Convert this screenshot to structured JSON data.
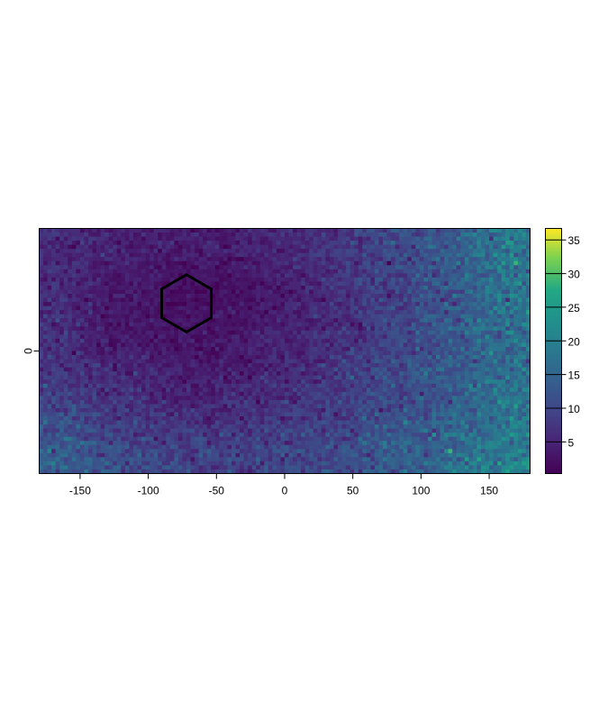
{
  "chart_data": {
    "type": "heatmap",
    "title": "",
    "xlabel": "",
    "ylabel": "",
    "xlim": [
      -180,
      180
    ],
    "ylim": [
      -90,
      90
    ],
    "x_ticks": [
      "-150",
      "-100",
      "-50",
      "0",
      "50",
      "100",
      "150"
    ],
    "y_ticks": [
      "0"
    ],
    "cell_size": 3,
    "colormap": "viridis",
    "zlim": [
      0.3,
      36.7
    ],
    "legend_ticks": [
      "5",
      "10",
      "15",
      "20",
      "25",
      "30",
      "35"
    ],
    "legend_placement": "right",
    "coarse_mean_grid": {
      "x_centers": [
        -165,
        -135,
        -105,
        -75,
        -45,
        -15,
        15,
        45,
        75,
        105,
        135,
        165
      ],
      "y_centers": [
        75,
        45,
        15,
        -15,
        -45,
        -75
      ],
      "values": [
        [
          6,
          5,
          4,
          4,
          4,
          5,
          6,
          8,
          10,
          12,
          15,
          19
        ],
        [
          6,
          4,
          3,
          2,
          2,
          3,
          5,
          7,
          9,
          11,
          14,
          18
        ],
        [
          6,
          4,
          3,
          3,
          3,
          4,
          5,
          7,
          9,
          11,
          14,
          17
        ],
        [
          7,
          6,
          5,
          4,
          4,
          5,
          6,
          8,
          10,
          12,
          14,
          17
        ],
        [
          10,
          8,
          7,
          6,
          6,
          7,
          8,
          9,
          11,
          13,
          15,
          18
        ],
        [
          14,
          12,
          10,
          9,
          9,
          9,
          10,
          11,
          13,
          15,
          17,
          20
        ]
      ]
    },
    "overlay": {
      "shape": "hexagon",
      "center": [
        -72,
        35
      ],
      "radius": 21,
      "color": "#000000"
    }
  }
}
